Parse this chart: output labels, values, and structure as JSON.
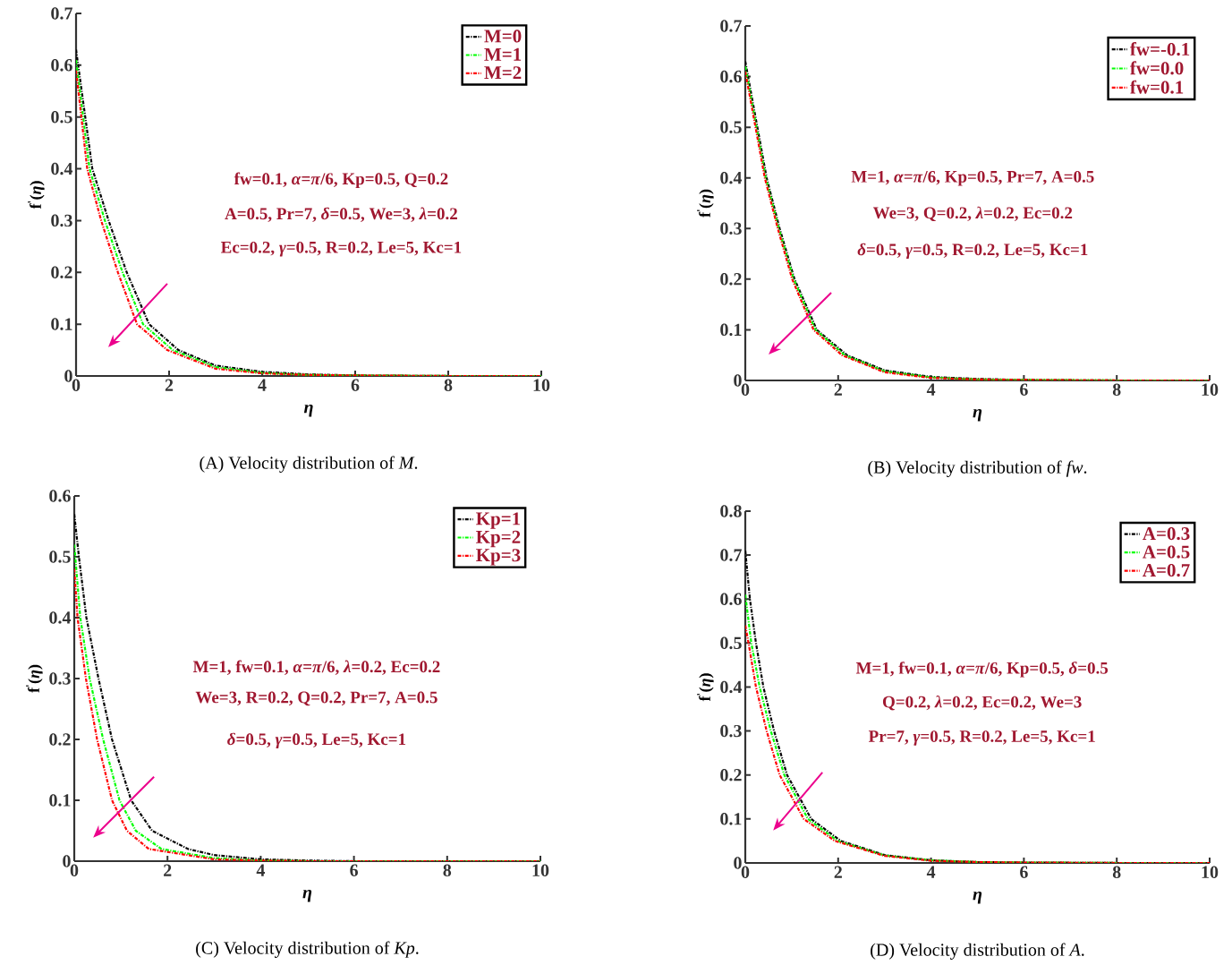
{
  "chart_data": [
    {
      "type": "line",
      "title": "(A) Velocity distribution of *M*.",
      "xlabel": "*η*",
      "ylabel": "f$^{'}$(*η*)",
      "xlim": [
        0,
        10
      ],
      "ylim": [
        0,
        0.7
      ],
      "xticks": [
        0,
        2,
        4,
        6,
        8,
        10
      ],
      "yticks": [
        0,
        0.1,
        0.2,
        0.3,
        0.4,
        0.5,
        0.6,
        0.7
      ],
      "legend": "top right",
      "line_style": "dashdot",
      "annotations": [
        "fw=0.1, *α*=*π*/6, Kp=0.5, Q=0.2",
        "A=0.5, Pr=7, *δ*=0.5, We=3, *λ*=0.2",
        "Ec=0.2, *γ*=0.5, R=0.2, Le=5, Kc=1"
      ],
      "series": [
        {
          "name": "M=0",
          "color": "#000000",
          "x": [
            0,
            0.35,
            0.7,
            1.09,
            1.57,
            2.2,
            3,
            4,
            5,
            6,
            8,
            10
          ],
          "values": [
            0.63,
            0.4,
            0.3,
            0.2,
            0.1,
            0.05,
            0.02,
            0.008,
            0.003,
            0.001,
            0,
            0
          ]
        },
        {
          "name": "M=1",
          "color": "#00ff00",
          "x": [
            0,
            0.29,
            0.62,
            1.0,
            1.44,
            2.08,
            3,
            4,
            5,
            6,
            8,
            10
          ],
          "values": [
            0.61,
            0.4,
            0.3,
            0.2,
            0.1,
            0.05,
            0.017,
            0.006,
            0.002,
            0.001,
            0,
            0
          ]
        },
        {
          "name": "M=2",
          "color": "#ff0000",
          "x": [
            0,
            0.24,
            0.54,
            0.9,
            1.31,
            1.96,
            3,
            4,
            5,
            6,
            8,
            10
          ],
          "values": [
            0.59,
            0.4,
            0.3,
            0.2,
            0.1,
            0.05,
            0.014,
            0.005,
            0.002,
            0.001,
            0,
            0
          ]
        }
      ]
    },
    {
      "type": "line",
      "title": "(B) Velocity distribution of *fw*.",
      "xlabel": "*η*",
      "ylabel": "f$^{'}$(*η*)",
      "xlim": [
        0,
        10
      ],
      "ylim": [
        0,
        0.7
      ],
      "xticks": [
        0,
        2,
        4,
        6,
        8,
        10
      ],
      "yticks": [
        0,
        0.1,
        0.2,
        0.3,
        0.4,
        0.5,
        0.6,
        0.7
      ],
      "legend": "top right",
      "line_style": "dashdot",
      "annotations": [
        "M=1, *α*=*π*/6, Kp=0.5, Pr=7, A=0.5",
        "We=3, Q=0.2, *λ*=0.2, Ec=0.2",
        "*δ*=0.5, *γ*=0.5, R=0.2, Le=5, Kc=1"
      ],
      "series": [
        {
          "name": "fw=-0.1",
          "color": "#000000",
          "x": [
            0,
            0.46,
            0.74,
            1.06,
            1.54,
            2.19,
            3,
            4,
            5,
            6,
            8,
            10
          ],
          "values": [
            0.63,
            0.4,
            0.3,
            0.2,
            0.1,
            0.05,
            0.02,
            0.007,
            0.003,
            0.001,
            0,
            0
          ]
        },
        {
          "name": "fw=0.0",
          "color": "#00ff00",
          "x": [
            0,
            0.44,
            0.72,
            1.04,
            1.51,
            2.14,
            3,
            4,
            5,
            6,
            8,
            10
          ],
          "values": [
            0.62,
            0.4,
            0.3,
            0.2,
            0.1,
            0.05,
            0.018,
            0.006,
            0.002,
            0.001,
            0,
            0
          ]
        },
        {
          "name": "fw=0.1",
          "color": "#ff0000",
          "x": [
            0,
            0.42,
            0.7,
            1.01,
            1.47,
            2.08,
            3,
            4,
            5,
            6,
            8,
            10
          ],
          "values": [
            0.61,
            0.4,
            0.3,
            0.2,
            0.1,
            0.05,
            0.016,
            0.005,
            0.002,
            0.001,
            0,
            0
          ]
        }
      ]
    },
    {
      "type": "line",
      "title": "(C) Velocity distribution of *Kp*.",
      "xlabel": "*η*",
      "ylabel": "f$^{'}$(*η*)",
      "xlim": [
        0,
        10
      ],
      "ylim": [
        0,
        0.6
      ],
      "xticks": [
        0,
        2,
        4,
        6,
        8,
        10
      ],
      "yticks": [
        0,
        0.1,
        0.2,
        0.3,
        0.4,
        0.5,
        0.6
      ],
      "legend": "top right",
      "line_style": "dashdot",
      "annotations": [
        "M=1, fw=0.1, *α*=*π*/6, *λ*=0.2, Ec=0.2",
        "We=3, R=0.2, Q=0.2, Pr=7, A=0.5",
        "*δ*=0.5, *γ*=0.5, Le=5, Kc=1"
      ],
      "series": [
        {
          "name": "Kp=1",
          "color": "#000000",
          "x": [
            0,
            0.1,
            0.26,
            0.52,
            0.81,
            1.22,
            1.67,
            2.44,
            3,
            4,
            5,
            6,
            8,
            10
          ],
          "values": [
            0.57,
            0.5,
            0.4,
            0.3,
            0.2,
            0.1,
            0.05,
            0.02,
            0.01,
            0.003,
            0.001,
            0,
            0,
            0
          ]
        },
        {
          "name": "Kp=2",
          "color": "#00ff00",
          "x": [
            0,
            0.13,
            0.33,
            0.62,
            0.97,
            1.32,
            1.87,
            3,
            4,
            5,
            6,
            8,
            10
          ],
          "values": [
            0.52,
            0.4,
            0.3,
            0.2,
            0.1,
            0.05,
            0.02,
            0.005,
            0.001,
            0,
            0,
            0,
            0
          ]
        },
        {
          "name": "Kp=3",
          "color": "#ff0000",
          "x": [
            0,
            0.07,
            0.25,
            0.49,
            0.81,
            1.13,
            1.6,
            3,
            4,
            5,
            6,
            8,
            10
          ],
          "values": [
            0.48,
            0.4,
            0.3,
            0.2,
            0.1,
            0.05,
            0.02,
            0.003,
            0.001,
            0,
            0,
            0,
            0
          ]
        }
      ]
    },
    {
      "type": "line",
      "title": "(D) Velocity distribution of *A*.",
      "xlabel": "*η*",
      "ylabel": "f$^{'}$(*η*)",
      "xlim": [
        0,
        10
      ],
      "ylim": [
        0,
        0.8
      ],
      "xticks": [
        0,
        2,
        4,
        6,
        8,
        10
      ],
      "yticks": [
        0,
        0.1,
        0.2,
        0.3,
        0.4,
        0.5,
        0.6,
        0.7,
        0.8
      ],
      "legend": "top right",
      "line_style": "dashdot",
      "annotations": [
        "M=1, fw=0.1, *α*=*π*/6, Kp=0.5, *δ*=0.5",
        "Q=0.2, *λ*=0.2, Ec=0.2, We=3",
        "Pr=7, *γ*=0.5, R=0.2, Le=5, Kc=1"
      ],
      "series": [
        {
          "name": "A=0.3",
          "color": "#000000",
          "x": [
            0,
            0.1,
            0.23,
            0.39,
            0.62,
            0.9,
            1.42,
            2.06,
            3,
            4,
            5,
            6,
            8,
            10
          ],
          "values": [
            0.71,
            0.6,
            0.5,
            0.4,
            0.3,
            0.2,
            0.1,
            0.05,
            0.018,
            0.006,
            0.002,
            0.001,
            0,
            0
          ]
        },
        {
          "name": "A=0.5",
          "color": "#00ff00",
          "x": [
            0,
            0.13,
            0.31,
            0.55,
            0.84,
            1.35,
            1.99,
            3,
            4,
            5,
            6,
            8,
            10
          ],
          "values": [
            0.61,
            0.5,
            0.4,
            0.3,
            0.2,
            0.1,
            0.05,
            0.017,
            0.006,
            0.002,
            0.001,
            0,
            0
          ]
        },
        {
          "name": "A=0.7",
          "color": "#ff0000",
          "x": [
            0,
            0.07,
            0.23,
            0.46,
            0.74,
            1.26,
            1.93,
            3,
            4,
            5,
            6,
            8,
            10
          ],
          "values": [
            0.54,
            0.5,
            0.4,
            0.3,
            0.2,
            0.1,
            0.05,
            0.016,
            0.005,
            0.002,
            0.001,
            0,
            0
          ]
        }
      ]
    }
  ]
}
